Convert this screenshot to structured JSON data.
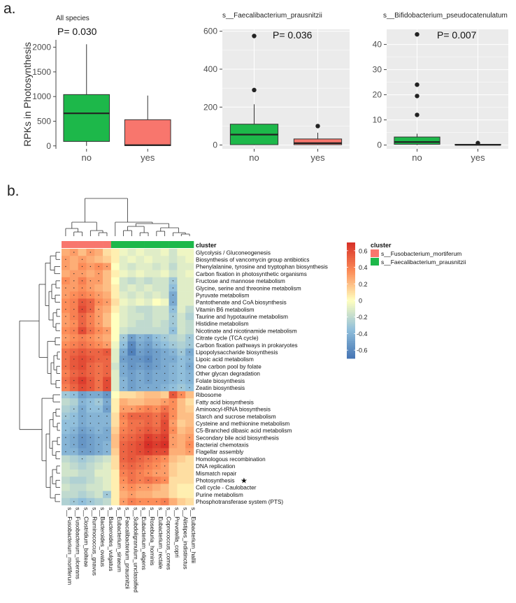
{
  "panel_labels": {
    "a": "a.",
    "b": "b."
  },
  "colors": {
    "no": "#1DB84A",
    "yes": "#F8766D",
    "panel_bg": "#EBEBEB",
    "grid": "#FFFFFF",
    "heat_low": "#3C6FB4",
    "heat_mid": "#FFFFBF",
    "heat_high": "#D73027",
    "cluster_fuso": "#F8766D",
    "cluster_faec": "#1DB84A"
  },
  "chart_data": [
    {
      "type": "box",
      "title": "All  species",
      "pvalue": "P= 0.030",
      "ylabel": "RPKs in Photosynthesis",
      "xlabel": "",
      "categories": [
        "no",
        "yes"
      ],
      "ylim": [
        -60,
        2150
      ],
      "yticks": [
        0,
        500,
        1000,
        1500,
        2000
      ],
      "boxes": [
        {
          "name": "no",
          "min": 0,
          "q1": 90,
          "median": 660,
          "q3": 1040,
          "max": 2060,
          "outliers": []
        },
        {
          "name": "yes",
          "min": 0,
          "q1": 5,
          "median": 15,
          "q3": 530,
          "max": 1020,
          "outliers": []
        }
      ],
      "background": "white"
    },
    {
      "type": "box",
      "title": "s__Faecalibacterium_prausnitzii",
      "pvalue": "P= 0.036",
      "categories": [
        "no",
        "yes"
      ],
      "ylim": [
        -20,
        610
      ],
      "yticks": [
        0,
        200,
        400,
        600
      ],
      "boxes": [
        {
          "name": "no",
          "min": 0,
          "q1": 2,
          "median": 55,
          "q3": 110,
          "max": 215,
          "outliers": [
            290,
            575
          ]
        },
        {
          "name": "yes",
          "min": 0,
          "q1": 2,
          "median": 10,
          "q3": 32,
          "max": 65,
          "outliers": [
            100
          ]
        }
      ],
      "background": "gray"
    },
    {
      "type": "box",
      "title": "s__Bifidobacterium_pseudocatenulatum",
      "pvalue": "P= 0.007",
      "categories": [
        "no",
        "yes"
      ],
      "ylim": [
        -1.5,
        46
      ],
      "yticks": [
        0,
        10,
        20,
        30,
        40
      ],
      "boxes": [
        {
          "name": "no",
          "min": 0,
          "q1": 0.3,
          "median": 1.2,
          "q3": 3.2,
          "max": 4.5,
          "outliers": [
            12,
            19.5,
            24,
            44
          ]
        },
        {
          "name": "yes",
          "min": 0,
          "q1": 0,
          "median": 0.1,
          "q3": 0.3,
          "max": 0.5,
          "outliers": [
            0.8
          ]
        }
      ],
      "background": "gray"
    },
    {
      "type": "heatmap",
      "cluster_header": "cluster",
      "legend": {
        "title": "cluster",
        "entries": [
          "s__Fusobacterium_mortiferum",
          "s__Faecalibacterium_prausnitzii"
        ],
        "scale_ticks": [
          "0.6",
          "0.4",
          "0.2",
          "0",
          "-0.2",
          "-0.4",
          "-0.6"
        ],
        "scale_values": [
          0.6,
          0.4,
          0.2,
          0,
          -0.2,
          -0.4,
          -0.6
        ],
        "range": [
          -0.7,
          0.7
        ]
      },
      "columns": [
        "s__Fusobacterium_mortiferum",
        "s__Fusobacterium_ulcerans",
        "s__Clostridium_bolteae",
        "s__Ruminococcus_gnavus",
        "s__Bacteroides_ovatus",
        "s__Bacteroides_vulgatus",
        "s__Eubacterium_siraeum",
        "s__Faecalibacterium_prausnitzii",
        "s__Subdoligranulum_unclassified",
        "s__Eubacterium_eligens",
        "s__Roseburia_hominis",
        "s__Eubacterium_rectale",
        "s__Coprococcus_comes",
        "s__Prevotella_copri",
        "s__Alistipes_indistinctus",
        "s__Eubacterium_hallii"
      ],
      "column_cluster": [
        1,
        1,
        1,
        1,
        1,
        1,
        2,
        2,
        2,
        2,
        2,
        2,
        2,
        2,
        2,
        2
      ],
      "rows": [
        "Glycolysis / Gluconeogenesis",
        "Biosynthesis of vancomycin group antibiotics",
        "Phenylalanine, tyrosine and tryptophan biosynthesis",
        "Carbon fixation in photosynthetic organisms",
        "Fructose and mannose metabolism",
        "Glycine, serine and threonine metabolism",
        "Pyruvate metabolism",
        "Pantothenate and CoA biosynthesis",
        "Vitamin B6 metabolism",
        "Taurine and hypotaurine metabolism",
        "Histidine metabolism",
        "Nicotinate and nicotinamide metabolism",
        "Citrate cycle (TCA cycle)",
        "Carbon fixation pathways in prokaryotes",
        "Lipopolysaccharide biosynthesis",
        "Lipoic acid metabolism",
        "One carbon pool by folate",
        "Other glycan degradation",
        "Folate biosynthesis",
        "Zeatin biosynthesis",
        "Ribosome",
        "Fatty acid biosynthesis",
        "Aminoacyl-tRNA biosynthesis",
        "Starch and sucrose metabolism",
        "Cysteine and methionine metabolism",
        "C5-Branched dibasic acid metabolism",
        "Secondary bile acid biosynthesis",
        "Bacterial chemotaxis",
        "Flagellar assembly",
        "Homologous recombination",
        "DNA replication",
        "Mismatch repair",
        "Photosynthesis",
        "Cell cycle - Caulobacter",
        "Purine metabolism",
        "Phosphotransferase system (PTS)"
      ],
      "highlight_row": "Photosynthesis",
      "highlight_mark": "★",
      "values": [
        [
          0.25,
          0.3,
          0.2,
          0.3,
          0.25,
          0.1,
          0.05,
          -0.05,
          -0.1,
          -0.05,
          -0.1,
          -0.1,
          -0.05,
          -0.15,
          -0.05,
          -0.05
        ],
        [
          0.3,
          0.25,
          0.3,
          0.25,
          0.2,
          0.15,
          0.05,
          -0.1,
          -0.05,
          -0.1,
          -0.05,
          -0.1,
          -0.1,
          -0.15,
          -0.1,
          -0.05
        ],
        [
          0.3,
          0.25,
          0.35,
          0.3,
          0.35,
          0.3,
          0.0,
          -0.1,
          -0.15,
          -0.1,
          -0.1,
          -0.15,
          -0.1,
          -0.2,
          -0.1,
          -0.1
        ],
        [
          0.25,
          0.3,
          0.3,
          0.25,
          0.3,
          0.2,
          0.05,
          -0.05,
          -0.1,
          -0.05,
          -0.1,
          -0.1,
          -0.05,
          -0.15,
          -0.1,
          -0.05
        ],
        [
          0.35,
          0.3,
          0.4,
          0.3,
          0.3,
          0.2,
          0.0,
          -0.15,
          -0.2,
          -0.15,
          -0.2,
          -0.15,
          -0.15,
          -0.3,
          -0.1,
          -0.1
        ],
        [
          0.3,
          0.3,
          0.35,
          0.3,
          0.25,
          0.2,
          0.05,
          -0.15,
          -0.1,
          -0.15,
          -0.1,
          -0.15,
          -0.15,
          -0.35,
          -0.1,
          -0.1
        ],
        [
          0.3,
          0.35,
          0.4,
          0.35,
          0.3,
          0.25,
          0.05,
          -0.1,
          -0.15,
          -0.1,
          -0.15,
          -0.1,
          -0.15,
          -0.45,
          -0.1,
          -0.1
        ],
        [
          0.35,
          0.4,
          0.55,
          0.5,
          0.35,
          0.3,
          0.1,
          -0.05,
          -0.1,
          -0.05,
          -0.1,
          0.0,
          -0.05,
          -0.45,
          -0.1,
          -0.1
        ],
        [
          0.35,
          0.4,
          0.6,
          0.5,
          0.3,
          0.25,
          0.05,
          -0.1,
          -0.15,
          -0.2,
          -0.2,
          -0.15,
          -0.15,
          -0.35,
          -0.1,
          -0.2
        ],
        [
          0.3,
          0.4,
          0.5,
          0.4,
          0.3,
          0.2,
          0.0,
          -0.1,
          -0.15,
          -0.15,
          -0.2,
          -0.15,
          -0.15,
          -0.3,
          -0.15,
          -0.25
        ],
        [
          0.3,
          0.35,
          0.5,
          0.4,
          0.3,
          0.2,
          0.0,
          -0.1,
          -0.15,
          -0.2,
          -0.2,
          -0.15,
          -0.2,
          -0.3,
          -0.15,
          -0.2
        ],
        [
          0.35,
          0.4,
          0.6,
          0.45,
          0.35,
          0.3,
          0.0,
          -0.15,
          -0.2,
          -0.2,
          -0.2,
          -0.2,
          -0.2,
          -0.35,
          -0.15,
          -0.2
        ],
        [
          0.3,
          0.35,
          0.4,
          0.35,
          0.3,
          0.25,
          0.0,
          -0.3,
          -0.5,
          -0.4,
          -0.45,
          -0.35,
          -0.3,
          -0.25,
          -0.2,
          -0.3
        ],
        [
          0.35,
          0.4,
          0.45,
          0.4,
          0.35,
          0.3,
          -0.05,
          -0.35,
          -0.6,
          -0.45,
          -0.5,
          -0.4,
          -0.35,
          -0.3,
          -0.25,
          -0.3
        ],
        [
          0.45,
          0.5,
          0.55,
          0.5,
          0.5,
          0.55,
          -0.1,
          -0.45,
          -0.65,
          -0.5,
          -0.55,
          -0.5,
          -0.45,
          -0.4,
          -0.3,
          -0.45
        ],
        [
          0.45,
          0.55,
          0.6,
          0.55,
          0.5,
          0.5,
          -0.1,
          -0.5,
          -0.55,
          -0.55,
          -0.6,
          -0.5,
          -0.45,
          -0.45,
          -0.35,
          -0.4
        ],
        [
          0.45,
          0.55,
          0.6,
          0.5,
          0.45,
          0.5,
          -0.15,
          -0.45,
          -0.55,
          -0.5,
          -0.55,
          -0.5,
          -0.45,
          -0.4,
          -0.35,
          -0.45
        ],
        [
          0.4,
          0.5,
          0.55,
          0.5,
          0.45,
          0.5,
          -0.1,
          -0.45,
          -0.5,
          -0.45,
          -0.5,
          -0.45,
          -0.45,
          -0.4,
          -0.35,
          -0.4
        ],
        [
          0.45,
          0.55,
          0.65,
          0.55,
          0.45,
          0.6,
          -0.1,
          -0.4,
          -0.5,
          -0.45,
          -0.5,
          -0.45,
          -0.45,
          -0.4,
          -0.35,
          -0.4
        ],
        [
          0.4,
          0.5,
          0.6,
          0.55,
          0.45,
          0.6,
          -0.1,
          -0.4,
          -0.5,
          -0.45,
          -0.45,
          -0.45,
          -0.4,
          -0.35,
          -0.3,
          -0.35
        ],
        [
          -0.3,
          -0.35,
          -0.5,
          -0.45,
          -0.45,
          -0.55,
          0.0,
          0.1,
          0.1,
          0.15,
          0.2,
          0.2,
          0.15,
          0.55,
          0.35,
          0.2
        ],
        [
          -0.2,
          -0.25,
          -0.4,
          -0.35,
          -0.3,
          -0.45,
          0.05,
          0.25,
          0.2,
          0.2,
          0.25,
          0.25,
          0.3,
          0.35,
          0.2,
          0.1
        ],
        [
          -0.25,
          -0.3,
          -0.45,
          -0.35,
          -0.35,
          -0.5,
          0.05,
          0.3,
          0.3,
          0.35,
          0.4,
          0.35,
          0.45,
          0.35,
          0.2,
          0.15
        ],
        [
          -0.3,
          -0.35,
          -0.45,
          -0.4,
          -0.4,
          -0.4,
          0.1,
          0.4,
          0.5,
          0.5,
          0.5,
          0.45,
          0.55,
          0.35,
          0.2,
          0.2
        ],
        [
          -0.35,
          -0.35,
          -0.45,
          -0.4,
          -0.4,
          -0.4,
          0.1,
          0.35,
          0.45,
          0.45,
          0.5,
          0.45,
          0.6,
          0.3,
          0.15,
          0.2
        ],
        [
          -0.35,
          -0.4,
          -0.5,
          -0.45,
          -0.4,
          -0.45,
          0.15,
          0.4,
          0.45,
          0.5,
          0.55,
          0.5,
          0.6,
          0.35,
          0.2,
          0.25
        ],
        [
          -0.4,
          -0.45,
          -0.55,
          -0.5,
          -0.45,
          -0.45,
          0.2,
          0.45,
          0.5,
          0.55,
          0.65,
          0.6,
          0.65,
          0.3,
          0.25,
          0.3
        ],
        [
          -0.4,
          -0.45,
          -0.55,
          -0.5,
          -0.45,
          -0.4,
          0.2,
          0.5,
          0.55,
          0.6,
          0.7,
          0.65,
          0.7,
          0.3,
          0.25,
          0.35
        ],
        [
          -0.4,
          -0.4,
          -0.5,
          -0.5,
          -0.45,
          -0.4,
          0.15,
          0.5,
          0.55,
          0.6,
          0.65,
          0.6,
          0.6,
          0.25,
          0.25,
          0.3
        ],
        [
          -0.2,
          -0.25,
          -0.3,
          -0.25,
          -0.2,
          -0.15,
          0.1,
          0.5,
          0.55,
          0.5,
          0.45,
          0.4,
          0.35,
          0.2,
          0.15,
          0.1
        ],
        [
          -0.15,
          -0.2,
          -0.25,
          -0.2,
          -0.15,
          -0.1,
          0.1,
          0.45,
          0.5,
          0.45,
          0.4,
          0.35,
          0.3,
          0.15,
          0.1,
          0.1
        ],
        [
          -0.15,
          -0.15,
          -0.2,
          -0.2,
          -0.1,
          -0.1,
          0.05,
          0.4,
          0.45,
          0.4,
          0.35,
          0.3,
          0.3,
          0.15,
          0.1,
          0.1
        ],
        [
          -0.2,
          -0.25,
          -0.25,
          -0.2,
          -0.15,
          -0.1,
          0.05,
          0.35,
          0.45,
          0.4,
          0.45,
          0.4,
          0.35,
          0.1,
          0.1,
          0.1
        ],
        [
          -0.15,
          -0.2,
          -0.2,
          -0.15,
          -0.15,
          -0.1,
          0.05,
          0.3,
          0.35,
          0.3,
          0.3,
          0.25,
          0.2,
          0.1,
          0.05,
          0.05
        ],
        [
          -0.2,
          -0.2,
          -0.25,
          -0.2,
          -0.15,
          -0.3,
          0.05,
          0.25,
          0.3,
          0.25,
          0.25,
          0.2,
          0.2,
          0.1,
          0.05,
          0.05
        ],
        [
          -0.25,
          -0.3,
          -0.35,
          -0.3,
          -0.25,
          -0.2,
          0.05,
          0.3,
          0.4,
          0.35,
          0.35,
          0.35,
          0.4,
          0.25,
          0.15,
          0.1
        ]
      ]
    }
  ]
}
